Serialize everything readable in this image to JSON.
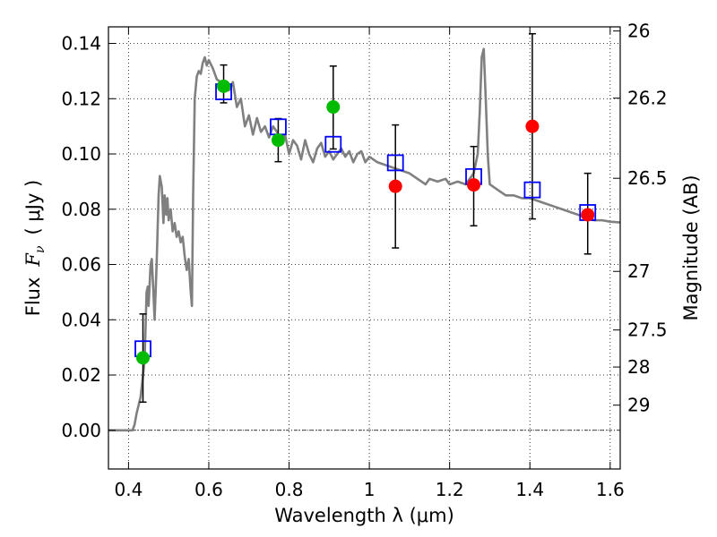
{
  "chart_data": {
    "type": "scatter",
    "xlabel": "Wavelength  λ (μm)",
    "ylabel_text": "Flux",
    "ylabel_symbol": "F",
    "ylabel_subscript": "ν",
    "ylabel_unit": "( μJy )",
    "y2label": "Magnitude (AB)",
    "xlim": [
      0.35,
      1.625
    ],
    "ylim": [
      -0.014,
      0.146
    ],
    "grid": true,
    "x_ticks": [
      {
        "value": 0.4,
        "label": "0.4"
      },
      {
        "value": 0.6,
        "label": "0.6"
      },
      {
        "value": 0.8,
        "label": "0.8"
      },
      {
        "value": 1.0,
        "label": "1"
      },
      {
        "value": 1.2,
        "label": "1.2"
      },
      {
        "value": 1.4,
        "label": "1.4"
      },
      {
        "value": 1.6,
        "label": "1.6"
      }
    ],
    "y_ticks": [
      {
        "value": 0.0,
        "label": "0.00"
      },
      {
        "value": 0.02,
        "label": "0.02"
      },
      {
        "value": 0.04,
        "label": "0.04"
      },
      {
        "value": 0.06,
        "label": "0.06"
      },
      {
        "value": 0.08,
        "label": "0.08"
      },
      {
        "value": 0.1,
        "label": "0.10"
      },
      {
        "value": 0.12,
        "label": "0.12"
      },
      {
        "value": 0.14,
        "label": "0.14"
      }
    ],
    "y2_ticks": [
      {
        "flux": 0.1445,
        "label": "26"
      },
      {
        "flux": 0.1202,
        "label": "26.2"
      },
      {
        "flux": 0.0912,
        "label": "26.5"
      },
      {
        "flux": 0.0575,
        "label": "27"
      },
      {
        "flux": 0.0363,
        "label": "27.5"
      },
      {
        "flux": 0.0229,
        "label": "28"
      },
      {
        "flux": 0.0091,
        "label": "29"
      }
    ],
    "model_spectrum": {
      "color": "#808080",
      "points": [
        [
          0.35,
          0.0
        ],
        [
          0.41,
          0.0
        ],
        [
          0.415,
          0.002
        ],
        [
          0.42,
          0.006
        ],
        [
          0.43,
          0.012
        ],
        [
          0.44,
          0.025
        ],
        [
          0.445,
          0.05
        ],
        [
          0.448,
          0.052
        ],
        [
          0.45,
          0.045
        ],
        [
          0.455,
          0.06
        ],
        [
          0.458,
          0.062
        ],
        [
          0.462,
          0.05
        ],
        [
          0.465,
          0.04
        ],
        [
          0.47,
          0.06
        ],
        [
          0.475,
          0.085
        ],
        [
          0.478,
          0.092
        ],
        [
          0.483,
          0.088
        ],
        [
          0.487,
          0.075
        ],
        [
          0.49,
          0.085
        ],
        [
          0.494,
          0.078
        ],
        [
          0.497,
          0.084
        ],
        [
          0.5,
          0.076
        ],
        [
          0.505,
          0.08
        ],
        [
          0.51,
          0.072
        ],
        [
          0.515,
          0.075
        ],
        [
          0.52,
          0.07
        ],
        [
          0.525,
          0.072
        ],
        [
          0.53,
          0.068
        ],
        [
          0.535,
          0.07
        ],
        [
          0.54,
          0.063
        ],
        [
          0.545,
          0.058
        ],
        [
          0.55,
          0.062
        ],
        [
          0.555,
          0.05
        ],
        [
          0.558,
          0.045
        ],
        [
          0.561,
          0.085
        ],
        [
          0.565,
          0.12
        ],
        [
          0.57,
          0.128
        ],
        [
          0.575,
          0.13
        ],
        [
          0.58,
          0.129
        ],
        [
          0.585,
          0.133
        ],
        [
          0.59,
          0.135
        ],
        [
          0.595,
          0.132
        ],
        [
          0.6,
          0.134
        ],
        [
          0.61,
          0.131
        ],
        [
          0.62,
          0.127
        ],
        [
          0.63,
          0.126
        ],
        [
          0.64,
          0.125
        ],
        [
          0.65,
          0.123
        ],
        [
          0.66,
          0.126
        ],
        [
          0.67,
          0.117
        ],
        [
          0.68,
          0.12
        ],
        [
          0.69,
          0.11
        ],
        [
          0.7,
          0.114
        ],
        [
          0.71,
          0.107
        ],
        [
          0.72,
          0.113
        ],
        [
          0.73,
          0.108
        ],
        [
          0.74,
          0.11
        ],
        [
          0.75,
          0.106
        ],
        [
          0.76,
          0.11
        ],
        [
          0.77,
          0.108
        ],
        [
          0.78,
          0.104
        ],
        [
          0.79,
          0.107
        ],
        [
          0.8,
          0.1
        ],
        [
          0.81,
          0.105
        ],
        [
          0.82,
          0.103
        ],
        [
          0.83,
          0.098
        ],
        [
          0.84,
          0.105
        ],
        [
          0.85,
          0.1
        ],
        [
          0.86,
          0.097
        ],
        [
          0.87,
          0.102
        ],
        [
          0.88,
          0.104
        ],
        [
          0.89,
          0.099
        ],
        [
          0.9,
          0.101
        ],
        [
          0.91,
          0.098
        ],
        [
          0.92,
          0.1
        ],
        [
          0.93,
          0.102
        ],
        [
          0.94,
          0.099
        ],
        [
          0.95,
          0.101
        ],
        [
          0.96,
          0.097
        ],
        [
          0.97,
          0.1
        ],
        [
          0.98,
          0.101
        ],
        [
          0.99,
          0.097
        ],
        [
          1.0,
          0.099
        ],
        [
          1.02,
          0.097
        ],
        [
          1.04,
          0.096
        ],
        [
          1.06,
          0.095
        ],
        [
          1.08,
          0.094
        ],
        [
          1.1,
          0.093
        ],
        [
          1.12,
          0.091
        ],
        [
          1.14,
          0.089
        ],
        [
          1.15,
          0.091
        ],
        [
          1.17,
          0.09
        ],
        [
          1.19,
          0.091
        ],
        [
          1.2,
          0.089
        ],
        [
          1.22,
          0.09
        ],
        [
          1.24,
          0.089
        ],
        [
          1.25,
          0.091
        ],
        [
          1.26,
          0.093
        ],
        [
          1.27,
          0.1
        ],
        [
          1.275,
          0.115
        ],
        [
          1.28,
          0.135
        ],
        [
          1.285,
          0.138
        ],
        [
          1.29,
          0.12
        ],
        [
          1.295,
          0.1
        ],
        [
          1.3,
          0.089
        ],
        [
          1.32,
          0.087
        ],
        [
          1.34,
          0.085
        ],
        [
          1.36,
          0.085
        ],
        [
          1.38,
          0.084
        ],
        [
          1.4,
          0.084
        ],
        [
          1.42,
          0.083
        ],
        [
          1.44,
          0.082
        ],
        [
          1.46,
          0.081
        ],
        [
          1.48,
          0.08
        ],
        [
          1.5,
          0.079
        ],
        [
          1.52,
          0.078
        ],
        [
          1.54,
          0.077
        ],
        [
          1.56,
          0.076
        ],
        [
          1.58,
          0.076
        ],
        [
          1.6,
          0.0755
        ],
        [
          1.625,
          0.0752
        ]
      ]
    },
    "series": [
      {
        "marker": "square-open",
        "color": "#0000ff",
        "points": [
          {
            "x": 0.436,
            "y": 0.0295
          },
          {
            "x": 0.637,
            "y": 0.1225
          },
          {
            "x": 0.773,
            "y": 0.1098
          },
          {
            "x": 0.91,
            "y": 0.1035
          },
          {
            "x": 1.065,
            "y": 0.0968
          },
          {
            "x": 1.26,
            "y": 0.0918
          },
          {
            "x": 1.406,
            "y": 0.087
          },
          {
            "x": 1.544,
            "y": 0.0788
          }
        ]
      },
      {
        "marker": "circle-filled",
        "color": "#00bb00",
        "points": [
          {
            "x": 0.436,
            "y": 0.0262
          },
          {
            "x": 0.637,
            "y": 0.1245
          },
          {
            "x": 0.773,
            "y": 0.105
          },
          {
            "x": 0.91,
            "y": 0.117
          }
        ]
      },
      {
        "marker": "circle-filled",
        "color": "#ff0000",
        "points": [
          {
            "x": 1.065,
            "y": 0.0883
          },
          {
            "x": 1.26,
            "y": 0.0888
          },
          {
            "x": 1.406,
            "y": 0.11
          },
          {
            "x": 1.544,
            "y": 0.078
          }
        ]
      }
    ],
    "error_bars": {
      "color": "#000000",
      "bars": [
        {
          "x": 0.436,
          "low": 0.0102,
          "high": 0.0421
        },
        {
          "x": 0.637,
          "low": 0.1185,
          "high": 0.1322
        },
        {
          "x": 0.773,
          "low": 0.0972,
          "high": 0.1128
        },
        {
          "x": 0.91,
          "low": 0.1018,
          "high": 0.1318
        },
        {
          "x": 1.065,
          "low": 0.066,
          "high": 0.1105
        },
        {
          "x": 1.26,
          "low": 0.074,
          "high": 0.1027
        },
        {
          "x": 1.406,
          "low": 0.0765,
          "high": 0.1435
        },
        {
          "x": 1.544,
          "low": 0.0638,
          "high": 0.093
        }
      ]
    }
  }
}
